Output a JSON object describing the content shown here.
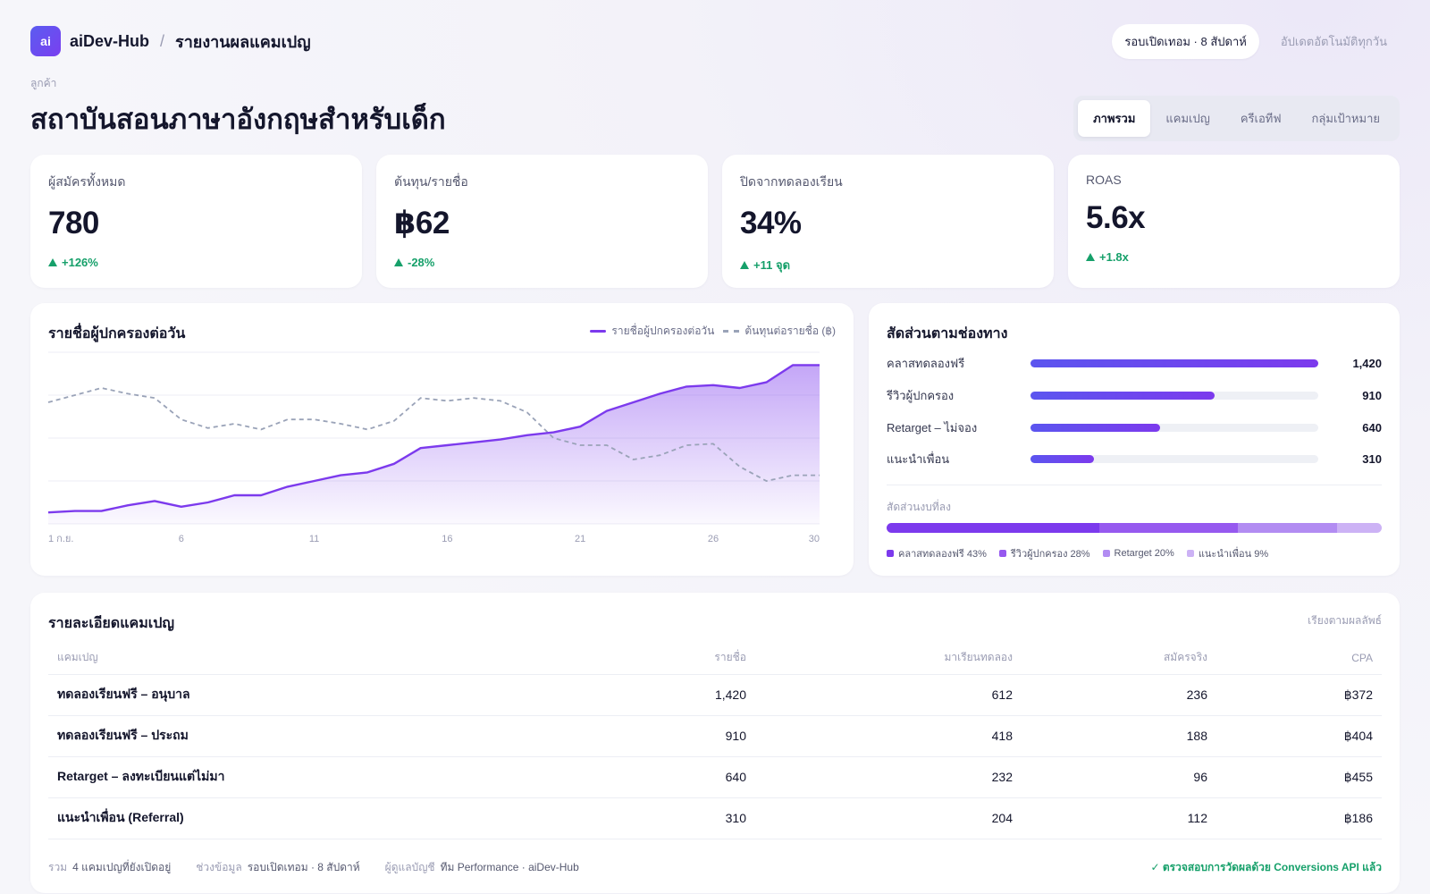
{
  "header": {
    "logo_text": "ai",
    "brand": "aiDev-Hub",
    "separator": "/",
    "page": "รายงานผลแคมเปญ",
    "period_pill": "รอบเปิดเทอม · 8 สัปดาห์",
    "update_note": "อัปเดตอัตโนมัติทุกวัน"
  },
  "client": {
    "label": "ลูกค้า",
    "name": "สถาบันสอนภาษาอังกฤษสำหรับเด็ก"
  },
  "tabs": [
    {
      "label": "ภาพรวม",
      "active": true
    },
    {
      "label": "แคมเปญ",
      "active": false
    },
    {
      "label": "ครีเอทีฟ",
      "active": false
    },
    {
      "label": "กลุ่มเป้าหมาย",
      "active": false
    }
  ],
  "kpis": [
    {
      "label": "ผู้สมัครทั้งหมด",
      "value": "780",
      "delta": "+126%"
    },
    {
      "label": "ต้นทุน/รายชื่อ",
      "value": "฿62",
      "delta": "-28%"
    },
    {
      "label": "ปิดจากทดลองเรียน",
      "value": "34%",
      "delta": "+11 จุด"
    },
    {
      "label": "ROAS",
      "value": "5.6x",
      "delta": "+1.8x"
    }
  ],
  "leads_chart": {
    "title": "รายชื่อผู้ปกครองต่อวัน",
    "legend_leads": "รายชื่อผู้ปกครองต่อวัน",
    "legend_cost": "ต้นทุนต่อรายชื่อ (฿)",
    "accent": "#7c3aed",
    "cost_color": "#9aa3b8"
  },
  "chart_data": {
    "type": "line",
    "x": [
      1,
      2,
      3,
      4,
      5,
      6,
      7,
      8,
      9,
      10,
      11,
      12,
      13,
      14,
      15,
      16,
      17,
      18,
      19,
      20,
      21,
      22,
      23,
      24,
      25,
      26,
      27,
      28,
      29,
      30
    ],
    "x_tick_labels": [
      "1 ก.ย.",
      "6",
      "11",
      "16",
      "21",
      "26",
      "30"
    ],
    "x_tick_positions": [
      1,
      6,
      11,
      16,
      21,
      26,
      30
    ],
    "series": [
      {
        "name": "รายชื่อผู้ปกครองต่อวัน",
        "style": "area",
        "color": "#7c3aed",
        "values": [
          8,
          9,
          9,
          13,
          16,
          12,
          15,
          20,
          20,
          26,
          30,
          34,
          36,
          42,
          53,
          55,
          57,
          59,
          62,
          64,
          68,
          79,
          85,
          91,
          96,
          97,
          95,
          99,
          111,
          111
        ]
      },
      {
        "name": "ต้นทุนต่อรายชื่อ (฿)",
        "style": "dashed",
        "color": "#9aa3b8",
        "values": [
          85,
          90,
          95,
          91,
          88,
          73,
          67,
          70,
          66,
          73,
          73,
          70,
          66,
          72,
          88,
          86,
          88,
          86,
          78,
          60,
          55,
          55,
          45,
          48,
          55,
          56,
          40,
          30,
          34,
          34
        ]
      }
    ],
    "ylim": [
      0,
      120
    ],
    "grid": true
  },
  "channels": {
    "title": "สัดส่วนตามช่องทาง",
    "items": [
      {
        "name": "คลาสทดลองฟรี",
        "value": "1,420",
        "fraction": 1.0
      },
      {
        "name": "รีวิวผู้ปกครอง",
        "value": "910",
        "fraction": 0.64
      },
      {
        "name": "Retarget – ไม่จอง",
        "value": "640",
        "fraction": 0.45
      },
      {
        "name": "แนะนำเพื่อน",
        "value": "310",
        "fraction": 0.22
      }
    ],
    "budget_label": "สัดส่วนงบที่ลง",
    "budget": [
      {
        "label": "คลาสทดลองฟรี 43%",
        "share": 43,
        "color": "#7c3aed"
      },
      {
        "label": "รีวิวผู้ปกครอง 28%",
        "share": 28,
        "color": "#9659ef"
      },
      {
        "label": "Retarget 20%",
        "share": 20,
        "color": "#b28cf2"
      },
      {
        "label": "แนะนำเพื่อน 9%",
        "share": 9,
        "color": "#ccb2f5"
      }
    ]
  },
  "campaign_table": {
    "title": "รายละเอียดแคมเปญ",
    "sort_note": "เรียงตามผลลัพธ์",
    "columns": [
      "แคมเปญ",
      "รายชื่อ",
      "มาเรียนทดลอง",
      "สมัครจริง",
      "CPA"
    ],
    "rows": [
      [
        "ทดลองเรียนฟรี – อนุบาล",
        "1,420",
        "612",
        "236",
        "฿372"
      ],
      [
        "ทดลองเรียนฟรี – ประถม",
        "910",
        "418",
        "188",
        "฿404"
      ],
      [
        "Retarget – ลงทะเบียนแต่ไม่มา",
        "640",
        "232",
        "96",
        "฿455"
      ],
      [
        "แนะนำเพื่อน (Referral)",
        "310",
        "204",
        "112",
        "฿186"
      ]
    ],
    "footer": {
      "total_label": "รวม",
      "total_value": "4 แคมเปญที่ยังเปิดอยู่",
      "range_label": "ช่วงข้อมูล",
      "range_value": "รอบเปิดเทอม · 8 สัปดาห์",
      "owner_label": "ผู้ดูแลบัญชี",
      "owner_value": "ทีม Performance · aiDev-Hub",
      "verified": "✓ ตรวจสอบการวัดผลด้วย Conversions API แล้ว"
    }
  }
}
